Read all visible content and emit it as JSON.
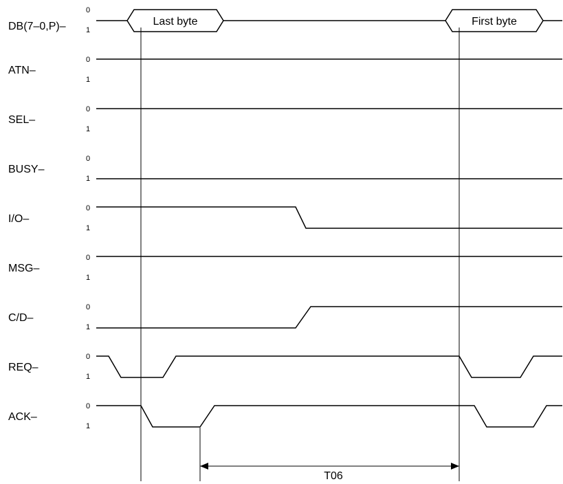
{
  "signals": [
    {
      "name": "DB(7–0,P)–",
      "level_high": "0",
      "level_low": "1"
    },
    {
      "name": "ATN–",
      "level_high": "0",
      "level_low": "1"
    },
    {
      "name": "SEL–",
      "level_high": "0",
      "level_low": "1"
    },
    {
      "name": "BUSY–",
      "level_high": "0",
      "level_low": "1"
    },
    {
      "name": "I/O–",
      "level_high": "0",
      "level_low": "1"
    },
    {
      "name": "MSG–",
      "level_high": "0",
      "level_low": "1"
    },
    {
      "name": "C/D–",
      "level_high": "0",
      "level_low": "1"
    },
    {
      "name": "REQ–",
      "level_high": "0",
      "level_low": "1"
    },
    {
      "name": "ACK–",
      "level_high": "0",
      "level_low": "1"
    }
  ],
  "data_bus": {
    "last_byte": "Last byte",
    "first_byte": "First byte"
  },
  "timing": {
    "interval_label": "T06"
  }
}
